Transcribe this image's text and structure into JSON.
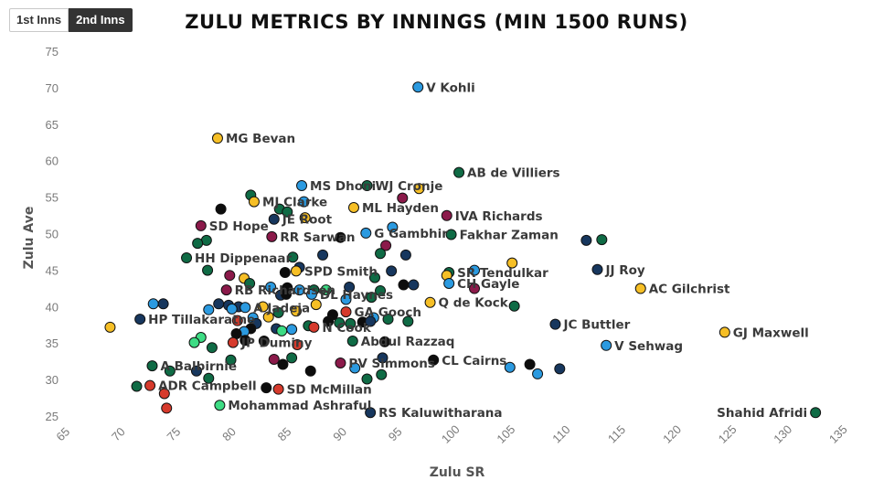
{
  "tabs": [
    {
      "label": "1st Inns",
      "active": false
    },
    {
      "label": "2nd Inns",
      "active": true
    }
  ],
  "chart_data": {
    "type": "scatter",
    "title": "ZULU METRICS BY INNINGS (MIN 1500 RUNS)",
    "xlabel": "Zulu SR",
    "ylabel": "Zulu Ave",
    "xlim": [
      65,
      135
    ],
    "ylim": [
      25,
      75
    ],
    "xticks": [
      65,
      70,
      75,
      80,
      85,
      90,
      95,
      100,
      105,
      110,
      115,
      120,
      125,
      130,
      135
    ],
    "yticks": [
      25,
      30,
      35,
      40,
      45,
      50,
      55,
      60,
      65,
      70,
      75
    ],
    "grid": false,
    "palette": {
      "blue": "#2b9ae0",
      "navy": "#17375e",
      "gold": "#f6bf26",
      "green": "#0f6b45",
      "black": "#0d0d0d",
      "red": "#d63a2c",
      "maroon": "#8b1a4a",
      "lightgreen": "#3ddc84"
    },
    "points": [
      {
        "x": 96.8,
        "y": 70.2,
        "color": "blue",
        "label": "V Kohli"
      },
      {
        "x": 78.7,
        "y": 63.2,
        "color": "gold",
        "label": "MG Bevan"
      },
      {
        "x": 100.5,
        "y": 58.5,
        "color": "green",
        "label": "AB de Villiers"
      },
      {
        "x": 86.3,
        "y": 56.7,
        "color": "blue",
        "label": "MS Dhoni"
      },
      {
        "x": 92.2,
        "y": 56.7,
        "color": "green",
        "label": "WJ Cronje"
      },
      {
        "x": 96.9,
        "y": 56.3,
        "color": "gold"
      },
      {
        "x": 81.7,
        "y": 55.4,
        "color": "green"
      },
      {
        "x": 95.4,
        "y": 55.0,
        "color": "maroon"
      },
      {
        "x": 82.0,
        "y": 54.5,
        "color": "gold",
        "label": "MJ Clarke"
      },
      {
        "x": 86.5,
        "y": 54.5,
        "color": "blue"
      },
      {
        "x": 79.0,
        "y": 53.5,
        "color": "black"
      },
      {
        "x": 84.3,
        "y": 53.5,
        "color": "green"
      },
      {
        "x": 91.0,
        "y": 53.7,
        "color": "gold",
        "label": "ML Hayden"
      },
      {
        "x": 85.0,
        "y": 53.1,
        "color": "green"
      },
      {
        "x": 99.4,
        "y": 52.6,
        "color": "maroon",
        "label": "IVA Richards"
      },
      {
        "x": 83.8,
        "y": 52.1,
        "color": "navy",
        "label": "JE Root"
      },
      {
        "x": 86.6,
        "y": 52.3,
        "color": "gold"
      },
      {
        "x": 77.2,
        "y": 51.2,
        "color": "maroon",
        "label": "SD Hope"
      },
      {
        "x": 94.5,
        "y": 51.0,
        "color": "blue"
      },
      {
        "x": 92.1,
        "y": 50.2,
        "color": "blue",
        "label": "G Gambhir"
      },
      {
        "x": 99.8,
        "y": 50.0,
        "color": "green",
        "label": "Fakhar Zaman"
      },
      {
        "x": 83.6,
        "y": 49.7,
        "color": "maroon",
        "label": "RR Sarwan"
      },
      {
        "x": 89.8,
        "y": 49.6,
        "color": "black"
      },
      {
        "x": 112.0,
        "y": 49.2,
        "color": "navy"
      },
      {
        "x": 113.4,
        "y": 49.3,
        "color": "green"
      },
      {
        "x": 77.7,
        "y": 49.2,
        "color": "green"
      },
      {
        "x": 76.9,
        "y": 48.8,
        "color": "green"
      },
      {
        "x": 93.9,
        "y": 48.5,
        "color": "maroon"
      },
      {
        "x": 93.4,
        "y": 47.4,
        "color": "green"
      },
      {
        "x": 95.7,
        "y": 47.2,
        "color": "navy"
      },
      {
        "x": 75.9,
        "y": 46.8,
        "color": "green",
        "label": "HH Dippenaar"
      },
      {
        "x": 85.5,
        "y": 46.9,
        "color": "green"
      },
      {
        "x": 88.2,
        "y": 47.2,
        "color": "navy"
      },
      {
        "x": 105.3,
        "y": 46.1,
        "color": "gold"
      },
      {
        "x": 113.0,
        "y": 45.2,
        "color": "navy",
        "label": "JJ Roy"
      },
      {
        "x": 116.9,
        "y": 42.6,
        "color": "gold",
        "label": "AC Gilchrist"
      },
      {
        "x": 86.1,
        "y": 45.5,
        "color": "navy"
      },
      {
        "x": 85.8,
        "y": 45.0,
        "color": "gold",
        "label": "SPD Smith"
      },
      {
        "x": 84.8,
        "y": 44.8,
        "color": "black"
      },
      {
        "x": 77.8,
        "y": 45.1,
        "color": "green"
      },
      {
        "x": 94.4,
        "y": 45.0,
        "color": "navy"
      },
      {
        "x": 101.9,
        "y": 45.1,
        "color": "blue"
      },
      {
        "x": 99.6,
        "y": 44.8,
        "color": "green",
        "label": "SR Tendulkar"
      },
      {
        "x": 92.9,
        "y": 44.1,
        "color": "green"
      },
      {
        "x": 99.4,
        "y": 44.4,
        "color": "gold"
      },
      {
        "x": 81.1,
        "y": 44.0,
        "color": "gold"
      },
      {
        "x": 81.6,
        "y": 43.3,
        "color": "green"
      },
      {
        "x": 79.8,
        "y": 44.4,
        "color": "maroon"
      },
      {
        "x": 95.5,
        "y": 43.1,
        "color": "black"
      },
      {
        "x": 96.4,
        "y": 43.1,
        "color": "navy"
      },
      {
        "x": 99.6,
        "y": 43.3,
        "color": "blue",
        "label": "CH Gayle"
      },
      {
        "x": 101.9,
        "y": 42.6,
        "color": "maroon"
      },
      {
        "x": 79.5,
        "y": 42.4,
        "color": "maroon",
        "label": "RB Richardson"
      },
      {
        "x": 85.0,
        "y": 42.7,
        "color": "black"
      },
      {
        "x": 83.5,
        "y": 42.8,
        "color": "blue"
      },
      {
        "x": 86.1,
        "y": 42.4,
        "color": "blue"
      },
      {
        "x": 87.4,
        "y": 42.4,
        "color": "green"
      },
      {
        "x": 88.5,
        "y": 42.4,
        "color": "lightgreen"
      },
      {
        "x": 90.6,
        "y": 42.8,
        "color": "navy"
      },
      {
        "x": 93.4,
        "y": 42.3,
        "color": "green"
      },
      {
        "x": 87.2,
        "y": 41.8,
        "color": "blue",
        "label": "DL Haynes"
      },
      {
        "x": 84.4,
        "y": 41.7,
        "color": "navy"
      },
      {
        "x": 84.9,
        "y": 41.8,
        "color": "black"
      },
      {
        "x": 92.6,
        "y": 41.4,
        "color": "green"
      },
      {
        "x": 90.3,
        "y": 41.1,
        "color": "blue"
      },
      {
        "x": 97.9,
        "y": 40.7,
        "color": "gold",
        "label": "Q de Kock"
      },
      {
        "x": 105.5,
        "y": 40.2,
        "color": "green"
      },
      {
        "x": 72.9,
        "y": 40.5,
        "color": "blue"
      },
      {
        "x": 73.8,
        "y": 40.5,
        "color": "navy"
      },
      {
        "x": 78.8,
        "y": 40.5,
        "color": "navy"
      },
      {
        "x": 79.7,
        "y": 40.3,
        "color": "navy"
      },
      {
        "x": 80.6,
        "y": 40.1,
        "color": "navy"
      },
      {
        "x": 81.2,
        "y": 40.0,
        "color": "blue",
        "label": "A Jadeja"
      },
      {
        "x": 82.8,
        "y": 40.1,
        "color": "gold"
      },
      {
        "x": 87.6,
        "y": 40.4,
        "color": "gold"
      },
      {
        "x": 80.0,
        "y": 39.8,
        "color": "blue"
      },
      {
        "x": 77.9,
        "y": 39.7,
        "color": "blue"
      },
      {
        "x": 84.2,
        "y": 39.3,
        "color": "green"
      },
      {
        "x": 85.8,
        "y": 39.5,
        "color": "gold"
      },
      {
        "x": 90.3,
        "y": 39.4,
        "color": "red",
        "label": "GA Gooch"
      },
      {
        "x": 89.1,
        "y": 39.0,
        "color": "black"
      },
      {
        "x": 81.9,
        "y": 38.6,
        "color": "blue"
      },
      {
        "x": 83.3,
        "y": 38.7,
        "color": "gold"
      },
      {
        "x": 92.8,
        "y": 38.6,
        "color": "blue"
      },
      {
        "x": 94.1,
        "y": 38.4,
        "color": "green"
      },
      {
        "x": 95.9,
        "y": 38.1,
        "color": "green"
      },
      {
        "x": 71.7,
        "y": 38.4,
        "color": "navy",
        "label": "HP Tillakaratne"
      },
      {
        "x": 88.7,
        "y": 38.1,
        "color": "black"
      },
      {
        "x": 89.7,
        "y": 37.9,
        "color": "green"
      },
      {
        "x": 90.7,
        "y": 37.8,
        "color": "green"
      },
      {
        "x": 91.8,
        "y": 38.0,
        "color": "black"
      },
      {
        "x": 92.5,
        "y": 38.1,
        "color": "navy"
      },
      {
        "x": 80.5,
        "y": 38.2,
        "color": "red"
      },
      {
        "x": 82.2,
        "y": 37.8,
        "color": "navy"
      },
      {
        "x": 109.2,
        "y": 37.7,
        "color": "navy",
        "label": "JC Buttler"
      },
      {
        "x": 81.7,
        "y": 37.1,
        "color": "black"
      },
      {
        "x": 81.1,
        "y": 36.7,
        "color": "blue"
      },
      {
        "x": 84.0,
        "y": 37.1,
        "color": "navy"
      },
      {
        "x": 85.4,
        "y": 37.0,
        "color": "blue"
      },
      {
        "x": 86.9,
        "y": 37.5,
        "color": "green"
      },
      {
        "x": 87.4,
        "y": 37.3,
        "color": "red",
        "label": "N Cook"
      },
      {
        "x": 80.4,
        "y": 36.4,
        "color": "black"
      },
      {
        "x": 84.5,
        "y": 36.8,
        "color": "lightgreen"
      },
      {
        "x": 69.0,
        "y": 37.3,
        "color": "gold"
      },
      {
        "x": 124.5,
        "y": 36.6,
        "color": "gold",
        "label": "GJ Maxwell"
      },
      {
        "x": 77.2,
        "y": 35.9,
        "color": "lightgreen"
      },
      {
        "x": 81.2,
        "y": 35.5,
        "color": "black"
      },
      {
        "x": 82.9,
        "y": 35.4,
        "color": "black"
      },
      {
        "x": 76.6,
        "y": 35.2,
        "color": "lightgreen"
      },
      {
        "x": 80.1,
        "y": 35.2,
        "color": "red",
        "label": "JP Duminy"
      },
      {
        "x": 85.9,
        "y": 34.9,
        "color": "red"
      },
      {
        "x": 90.9,
        "y": 35.4,
        "color": "green",
        "label": "Abdul Razzaq"
      },
      {
        "x": 93.8,
        "y": 35.3,
        "color": "black"
      },
      {
        "x": 113.8,
        "y": 34.8,
        "color": "blue",
        "label": "V Sehwag"
      },
      {
        "x": 78.2,
        "y": 34.5,
        "color": "green"
      },
      {
        "x": 98.2,
        "y": 32.8,
        "color": "black",
        "label": "CL Cairns"
      },
      {
        "x": 93.6,
        "y": 33.1,
        "color": "navy"
      },
      {
        "x": 79.9,
        "y": 32.8,
        "color": "green"
      },
      {
        "x": 83.8,
        "y": 32.9,
        "color": "maroon"
      },
      {
        "x": 84.6,
        "y": 32.2,
        "color": "black"
      },
      {
        "x": 85.4,
        "y": 33.1,
        "color": "green"
      },
      {
        "x": 89.8,
        "y": 32.4,
        "color": "maroon",
        "label": "PV Simmons"
      },
      {
        "x": 72.8,
        "y": 32.0,
        "color": "green",
        "label": "A Balbirnie"
      },
      {
        "x": 74.4,
        "y": 31.3,
        "color": "green"
      },
      {
        "x": 76.8,
        "y": 31.3,
        "color": "navy"
      },
      {
        "x": 87.1,
        "y": 31.3,
        "color": "black"
      },
      {
        "x": 91.1,
        "y": 31.7,
        "color": "blue"
      },
      {
        "x": 93.5,
        "y": 30.8,
        "color": "green"
      },
      {
        "x": 92.2,
        "y": 30.2,
        "color": "green"
      },
      {
        "x": 77.9,
        "y": 30.3,
        "color": "green"
      },
      {
        "x": 105.1,
        "y": 31.8,
        "color": "blue"
      },
      {
        "x": 106.9,
        "y": 32.2,
        "color": "black"
      },
      {
        "x": 107.6,
        "y": 30.9,
        "color": "blue"
      },
      {
        "x": 109.6,
        "y": 31.6,
        "color": "navy"
      },
      {
        "x": 71.4,
        "y": 29.2,
        "color": "green"
      },
      {
        "x": 72.6,
        "y": 29.3,
        "color": "red",
        "label": "ADR Campbell"
      },
      {
        "x": 83.1,
        "y": 29.0,
        "color": "black"
      },
      {
        "x": 84.2,
        "y": 28.8,
        "color": "red",
        "label": "SD McMillan"
      },
      {
        "x": 73.9,
        "y": 28.2,
        "color": "red"
      },
      {
        "x": 78.9,
        "y": 26.6,
        "color": "lightgreen",
        "label": "Mohammad Ashraful"
      },
      {
        "x": 74.1,
        "y": 26.2,
        "color": "red"
      },
      {
        "x": 92.5,
        "y": 25.6,
        "color": "navy",
        "label": "RS Kaluwitharana"
      },
      {
        "x": 132.7,
        "y": 25.6,
        "color": "green",
        "label": "Shahid Afridi",
        "label_side": "left"
      }
    ]
  }
}
